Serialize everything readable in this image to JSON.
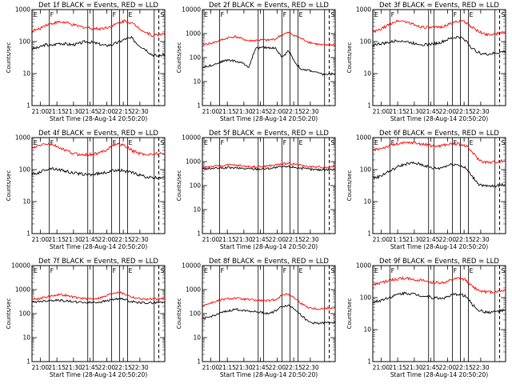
{
  "chart_data": [
    {
      "type": "line",
      "title": "Det 1f BLACK = Events, RED = LLD",
      "ylabel": "Counts/sec",
      "xlabel": "Start Time (28-Aug-14 20:50:20)",
      "y_scale": "log",
      "ylim": [
        1,
        1000
      ],
      "yticks": [
        1,
        10,
        100,
        1000
      ],
      "xticks": [
        "21:00",
        "21:15",
        "21:30",
        "21:45",
        "22:00",
        "22:15",
        "22:30"
      ],
      "markers": [
        "E",
        "F",
        "F",
        "E",
        "S"
      ],
      "series": [
        {
          "name": "Events",
          "color": "#000000",
          "values": [
            60,
            65,
            80,
            75,
            90,
            85,
            80,
            85,
            100,
            95,
            85,
            75,
            80,
            95,
            120,
            130,
            80,
            60,
            40,
            35,
            40
          ]
        },
        {
          "name": "LLD",
          "color": "#ff0000",
          "values": [
            220,
            240,
            330,
            370,
            410,
            400,
            340,
            300,
            280,
            260,
            250,
            270,
            300,
            380,
            450,
            380,
            280,
            200,
            160,
            160,
            190
          ]
        }
      ]
    },
    {
      "type": "line",
      "title": "Det 2f BLACK = Events, RED = LLD",
      "ylabel": "Counts/sec",
      "xlabel": "Start Time (28-Aug-14 20:50:20)",
      "y_scale": "log",
      "ylim": [
        1,
        10000
      ],
      "yticks": [
        1,
        10,
        100,
        1000,
        10000
      ],
      "xticks": [
        "21:00",
        "21:15",
        "21:30",
        "21:45",
        "22:00",
        "22:15",
        "22:30"
      ],
      "markers": [
        "E",
        "F",
        "F",
        "E",
        "S"
      ],
      "series": [
        {
          "name": "Events",
          "color": "#000000",
          "values": [
            40,
            45,
            55,
            70,
            80,
            70,
            60,
            40,
            250,
            260,
            260,
            250,
            100,
            200,
            60,
            30,
            30,
            25,
            20,
            20,
            22
          ]
        },
        {
          "name": "LLD",
          "color": "#ff0000",
          "values": [
            350,
            380,
            450,
            550,
            700,
            750,
            600,
            500,
            520,
            540,
            530,
            600,
            900,
            1100,
            800,
            600,
            450,
            380,
            330,
            330,
            350
          ]
        }
      ]
    },
    {
      "type": "line",
      "title": "Det 3f BLACK = Events, RED = LLD",
      "ylabel": "Counts/sec",
      "xlabel": "Start Time (28-Aug-14 20:50:20)",
      "y_scale": "log",
      "ylim": [
        1,
        1000
      ],
      "yticks": [
        1,
        10,
        100,
        1000
      ],
      "xticks": [
        "21:00",
        "21:15",
        "21:30",
        "21:45",
        "22:00",
        "22:15",
        "22:30"
      ],
      "markers": [
        "E",
        "F",
        "F",
        "E",
        "S"
      ],
      "series": [
        {
          "name": "Events",
          "color": "#000000",
          "values": [
            80,
            85,
            90,
            100,
            110,
            100,
            90,
            85,
            80,
            85,
            90,
            110,
            130,
            140,
            110,
            60,
            45,
            40,
            42,
            45,
            50
          ]
        },
        {
          "name": "LLD",
          "color": "#ff0000",
          "values": [
            200,
            230,
            300,
            400,
            450,
            420,
            350,
            300,
            280,
            270,
            280,
            320,
            380,
            450,
            400,
            280,
            200,
            170,
            170,
            180,
            200
          ]
        }
      ]
    },
    {
      "type": "line",
      "title": "Det 4f BLACK = Events, RED = LLD",
      "ylabel": "Counts/sec",
      "xlabel": "Start Time (28-Aug-14 20:50:20)",
      "y_scale": "log",
      "ylim": [
        1,
        1000
      ],
      "yticks": [
        1,
        10,
        100,
        1000
      ],
      "xticks": [
        "21:00",
        "21:15",
        "21:30",
        "21:45",
        "22:00",
        "22:15",
        "22:30"
      ],
      "markers": [
        "E",
        "F",
        "F",
        "E",
        "S"
      ],
      "series": [
        {
          "name": "Events",
          "color": "#000000",
          "values": [
            70,
            80,
            100,
            110,
            100,
            90,
            80,
            75,
            70,
            70,
            75,
            80,
            90,
            100,
            90,
            80,
            70,
            60,
            55,
            55,
            60
          ]
        },
        {
          "name": "LLD",
          "color": "#ff0000",
          "values": [
            450,
            550,
            650,
            600,
            500,
            400,
            330,
            300,
            290,
            300,
            320,
            400,
            550,
            650,
            550,
            400,
            330,
            300,
            300,
            310,
            320
          ]
        }
      ]
    },
    {
      "type": "line",
      "title": "Det 5f BLACK = Events, RED = LLD",
      "ylabel": "Counts/sec",
      "xlabel": "Start Time (28-Aug-14 20:50:20)",
      "y_scale": "log",
      "ylim": [
        1,
        10000
      ],
      "yticks": [
        1,
        10,
        100,
        1000,
        10000
      ],
      "xticks": [
        "21:00",
        "21:15",
        "21:30",
        "21:45",
        "22:00",
        "22:15",
        "22:30"
      ],
      "markers": [
        "E",
        "F",
        "F",
        "E",
        "S"
      ],
      "series": [
        {
          "name": "Events",
          "color": "#000000",
          "values": [
            500,
            510,
            520,
            540,
            560,
            540,
            520,
            500,
            490,
            500,
            520,
            560,
            600,
            620,
            580,
            520,
            480,
            460,
            460,
            470,
            480
          ]
        },
        {
          "name": "LLD",
          "color": "#ff0000",
          "values": [
            600,
            620,
            640,
            680,
            720,
            700,
            660,
            620,
            600,
            620,
            660,
            720,
            800,
            850,
            780,
            680,
            620,
            590,
            590,
            600,
            620
          ]
        }
      ]
    },
    {
      "type": "line",
      "title": "Det 6f BLACK = Events, RED = LLD",
      "ylabel": "Counts/sec",
      "xlabel": "Start Time (28-Aug-14 20:50:20)",
      "y_scale": "log",
      "ylim": [
        1,
        1000
      ],
      "yticks": [
        1,
        10,
        100,
        1000
      ],
      "xticks": [
        "21:00",
        "21:15",
        "21:30",
        "21:45",
        "22:00",
        "22:15",
        "22:30"
      ],
      "markers": [
        "E",
        "F",
        "F",
        "E",
        "S"
      ],
      "series": [
        {
          "name": "Events",
          "color": "#000000",
          "values": [
            55,
            60,
            80,
            100,
            130,
            150,
            160,
            150,
            130,
            110,
            110,
            130,
            150,
            140,
            110,
            60,
            35,
            30,
            30,
            32,
            35
          ]
        },
        {
          "name": "LLD",
          "color": "#ff0000",
          "values": [
            400,
            450,
            520,
            600,
            650,
            680,
            700,
            650,
            600,
            550,
            550,
            600,
            650,
            620,
            550,
            350,
            200,
            170,
            170,
            180,
            190
          ]
        }
      ]
    },
    {
      "type": "line",
      "title": "Det 7f BLACK = Events, RED = LLD",
      "ylabel": "Counts/sec",
      "xlabel": "Start Time (28-Aug-14 20:50:20)",
      "y_scale": "log",
      "ylim": [
        1,
        10000
      ],
      "yticks": [
        1,
        10,
        100,
        1000,
        10000
      ],
      "xticks": [
        "21:00",
        "21:15",
        "21:30",
        "21:45",
        "22:00",
        "22:15",
        "22:30"
      ],
      "markers": [
        "E",
        "F",
        "F",
        "E",
        "S"
      ],
      "series": [
        {
          "name": "Events",
          "color": "#000000",
          "values": [
            300,
            320,
            340,
            360,
            360,
            340,
            320,
            300,
            290,
            290,
            300,
            330,
            380,
            420,
            380,
            320,
            290,
            280,
            280,
            290,
            300
          ]
        },
        {
          "name": "LLD",
          "color": "#ff0000",
          "values": [
            400,
            420,
            480,
            560,
            620,
            580,
            500,
            450,
            420,
            420,
            440,
            520,
            700,
            800,
            650,
            500,
            430,
            400,
            400,
            410,
            420
          ]
        }
      ]
    },
    {
      "type": "line",
      "title": "Det 8f BLACK = Events, RED = LLD",
      "ylabel": "Counts/sec",
      "xlabel": "Start Time (28-Aug-14 20:50:20)",
      "y_scale": "log",
      "ylim": [
        1,
        10000
      ],
      "yticks": [
        1,
        10,
        100,
        1000,
        10000
      ],
      "xticks": [
        "21:00",
        "21:15",
        "21:30",
        "21:45",
        "22:00",
        "22:15",
        "22:30"
      ],
      "markers": [
        "E",
        "F",
        "F",
        "E",
        "S"
      ],
      "series": [
        {
          "name": "Events",
          "color": "#000000",
          "values": [
            60,
            70,
            90,
            110,
            130,
            150,
            140,
            130,
            120,
            110,
            100,
            130,
            200,
            220,
            150,
            80,
            45,
            40,
            40,
            42,
            45
          ]
        },
        {
          "name": "LLD",
          "color": "#ff0000",
          "values": [
            220,
            260,
            320,
            380,
            420,
            440,
            400,
            380,
            360,
            350,
            340,
            380,
            600,
            650,
            420,
            250,
            180,
            160,
            160,
            170,
            180
          ]
        }
      ]
    },
    {
      "type": "line",
      "title": "Det 9f BLACK = Events, RED = LLD",
      "ylabel": "Counts/sec",
      "xlabel": "Start Time (28-Aug-14 20:50:20)",
      "y_scale": "log",
      "ylim": [
        1,
        1000
      ],
      "yticks": [
        1,
        10,
        100,
        1000
      ],
      "xticks": [
        "21:00",
        "21:15",
        "21:30",
        "21:45",
        "22:00",
        "22:15",
        "22:30"
      ],
      "markers": [
        "E",
        "F",
        "F",
        "E",
        "S"
      ],
      "series": [
        {
          "name": "Events",
          "color": "#000000",
          "values": [
            70,
            80,
            95,
            110,
            130,
            140,
            130,
            120,
            110,
            100,
            95,
            100,
            120,
            130,
            110,
            60,
            40,
            35,
            35,
            38,
            40
          ]
        },
        {
          "name": "LLD",
          "color": "#ff0000",
          "values": [
            250,
            280,
            320,
            360,
            390,
            400,
            380,
            350,
            320,
            300,
            290,
            300,
            360,
            400,
            350,
            220,
            170,
            150,
            150,
            160,
            170
          ]
        }
      ]
    }
  ]
}
